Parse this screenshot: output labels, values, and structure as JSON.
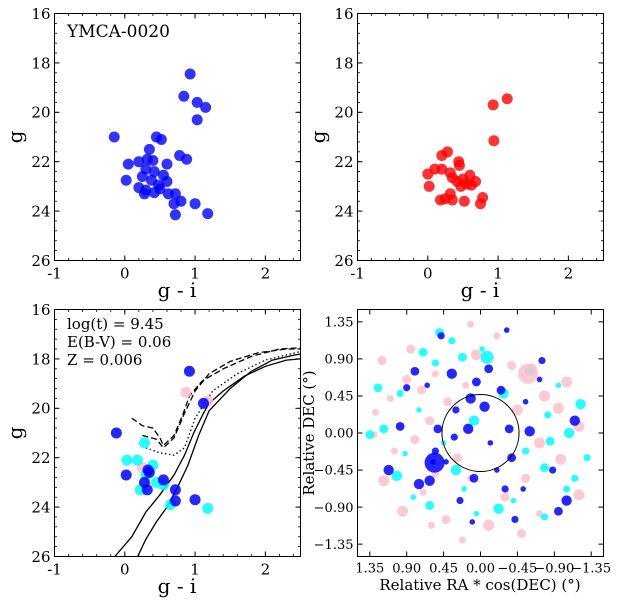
{
  "chart_data": [
    {
      "type": "scatter",
      "panel": "top-left",
      "title": "YMCA-0020",
      "xlabel": "g - i",
      "ylabel": "g",
      "xlim": [
        -1,
        2.5
      ],
      "ylim": [
        26,
        16
      ],
      "xticks": [
        -1,
        0,
        1,
        2
      ],
      "yticks": [
        16,
        18,
        20,
        22,
        24,
        26
      ],
      "color": "#0000ff",
      "points": [
        [
          0.93,
          18.45
        ],
        [
          0.84,
          19.35
        ],
        [
          1.03,
          19.6
        ],
        [
          1.15,
          19.8
        ],
        [
          1.03,
          20.3
        ],
        [
          -0.15,
          21.0
        ],
        [
          0.45,
          21.0
        ],
        [
          0.52,
          21.1
        ],
        [
          0.78,
          21.75
        ],
        [
          0.88,
          21.9
        ],
        [
          0.35,
          21.5
        ],
        [
          0.32,
          21.9
        ],
        [
          0.05,
          22.1
        ],
        [
          0.2,
          22.0
        ],
        [
          0.4,
          21.95
        ],
        [
          0.6,
          22.1
        ],
        [
          0.3,
          22.3
        ],
        [
          0.42,
          22.4
        ],
        [
          0.55,
          22.55
        ],
        [
          0.25,
          22.6
        ],
        [
          0.02,
          22.75
        ],
        [
          0.38,
          22.75
        ],
        [
          0.6,
          22.8
        ],
        [
          0.48,
          22.95
        ],
        [
          0.2,
          23.05
        ],
        [
          0.3,
          23.15
        ],
        [
          0.5,
          23.1
        ],
        [
          0.62,
          23.3
        ],
        [
          0.72,
          23.3
        ],
        [
          0.28,
          23.3
        ],
        [
          0.42,
          23.25
        ],
        [
          0.8,
          23.6
        ],
        [
          0.7,
          23.7
        ],
        [
          1.0,
          23.7
        ],
        [
          0.72,
          24.15
        ],
        [
          1.18,
          24.1
        ]
      ]
    },
    {
      "type": "scatter",
      "panel": "top-right",
      "xlabel": "g - i",
      "ylabel": "g",
      "xlim": [
        -1,
        2.5
      ],
      "ylim": [
        26,
        16
      ],
      "xticks": [
        -1,
        0,
        1,
        2
      ],
      "yticks": [
        16,
        18,
        20,
        22,
        24,
        26
      ],
      "color": "#ff0000",
      "points": [
        [
          1.13,
          19.45
        ],
        [
          0.93,
          19.7
        ],
        [
          0.94,
          21.15
        ],
        [
          0.28,
          21.6
        ],
        [
          0.2,
          21.75
        ],
        [
          0.44,
          22.0
        ],
        [
          0.45,
          22.15
        ],
        [
          0.1,
          22.3
        ],
        [
          0.2,
          22.3
        ],
        [
          0.32,
          22.45
        ],
        [
          0.0,
          22.5
        ],
        [
          0.6,
          22.55
        ],
        [
          0.35,
          22.65
        ],
        [
          0.5,
          22.7
        ],
        [
          0.42,
          22.8
        ],
        [
          0.68,
          22.8
        ],
        [
          0.55,
          22.9
        ],
        [
          0.62,
          22.95
        ],
        [
          0.47,
          23.0
        ],
        [
          0.02,
          23.0
        ],
        [
          0.32,
          23.3
        ],
        [
          0.25,
          23.5
        ],
        [
          0.78,
          23.45
        ],
        [
          0.18,
          23.55
        ],
        [
          0.35,
          23.55
        ],
        [
          0.52,
          23.6
        ],
        [
          0.75,
          23.7
        ]
      ]
    },
    {
      "type": "scatter",
      "panel": "bottom-left",
      "xlabel": "g - i",
      "ylabel": "g",
      "xlim": [
        -1,
        2.5
      ],
      "ylim": [
        26,
        16
      ],
      "xticks": [
        -1,
        0,
        1,
        2
      ],
      "yticks": [
        16,
        18,
        20,
        22,
        24,
        26
      ],
      "annotations": [
        "log(t) = 9.45",
        "E(B-V) = 0.06",
        "Z = 0.006"
      ],
      "series": [
        {
          "name": "pink",
          "color": "#ffc0cb",
          "points": [
            [
              0.87,
              19.35
            ],
            [
              1.18,
              19.7
            ],
            [
              0.25,
              22.4
            ]
          ]
        },
        {
          "name": "cyan",
          "color": "#00ffff",
          "points": [
            [
              0.03,
              22.1
            ],
            [
              0.18,
              22.1
            ],
            [
              0.28,
              21.4
            ],
            [
              0.3,
              22.7
            ],
            [
              0.45,
              23.0
            ],
            [
              0.22,
              23.3
            ],
            [
              0.55,
              23.1
            ],
            [
              1.18,
              24.05
            ],
            [
              0.4,
              22.3
            ],
            [
              0.65,
              23.9
            ]
          ]
        },
        {
          "name": "blue",
          "color": "#0000ff",
          "points": [
            [
              -0.12,
              21.0
            ],
            [
              0.92,
              18.5
            ],
            [
              1.12,
              19.8
            ],
            [
              0.02,
              22.7
            ],
            [
              0.33,
              22.5
            ],
            [
              0.35,
              22.6
            ],
            [
              0.55,
              22.9
            ],
            [
              0.72,
              23.3
            ],
            [
              0.32,
              23.3
            ],
            [
              0.72,
              23.75
            ],
            [
              0.28,
              23.0
            ],
            [
              1.0,
              23.7
            ]
          ]
        }
      ],
      "isochrones": [
        {
          "style": "solid",
          "x": [
            -0.2,
            0.1,
            0.3,
            0.5,
            0.7,
            0.85,
            0.98,
            1.12,
            1.2,
            1.4,
            1.7,
            2.0,
            2.3,
            2.5
          ],
          "y": [
            26.2,
            25.2,
            24.2,
            23.5,
            22.7,
            21.9,
            21.0,
            20.2,
            19.8,
            19.3,
            18.7,
            18.3,
            18.05,
            18.0
          ]
        },
        {
          "style": "solid",
          "x": [
            0.15,
            0.3,
            0.45,
            0.6,
            0.75,
            0.9,
            1.05,
            1.2,
            1.5,
            1.8,
            2.1,
            2.4,
            2.5
          ],
          "y": [
            26.2,
            25.3,
            24.6,
            24.0,
            23.2,
            22.3,
            21.1,
            20.1,
            19.2,
            18.5,
            18.05,
            17.85,
            17.8
          ]
        },
        {
          "style": "dashed",
          "x": [
            0.1,
            0.25,
            0.4,
            0.5,
            0.55,
            0.7,
            0.82,
            0.92,
            1.1,
            1.4,
            1.8,
            2.2,
            2.5
          ],
          "y": [
            20.4,
            20.7,
            20.8,
            21.2,
            21.5,
            21.1,
            20.3,
            19.5,
            18.9,
            18.4,
            17.9,
            17.6,
            17.55
          ]
        },
        {
          "style": "dashed",
          "x": [
            0.25,
            0.45,
            0.55,
            0.7,
            0.85,
            1.0,
            1.2,
            1.5,
            1.9,
            2.3,
            2.5
          ],
          "y": [
            21.1,
            21.25,
            21.6,
            21.2,
            20.2,
            19.3,
            18.6,
            18.1,
            17.75,
            17.6,
            17.6
          ]
        },
        {
          "style": "dotted",
          "x": [
            0.3,
            0.5,
            0.7,
            0.85,
            1.0,
            1.25,
            1.6,
            2.0,
            2.5
          ],
          "y": [
            21.6,
            21.8,
            21.9,
            21.6,
            20.4,
            19.3,
            18.6,
            18.05,
            17.7
          ]
        }
      ]
    },
    {
      "type": "scatter",
      "panel": "bottom-right",
      "xlabel": "Relative RA * cos(DEC) (°)",
      "ylabel": "Relative DEC (°)",
      "xlim": [
        1.5,
        -1.5
      ],
      "ylim": [
        -1.5,
        1.5
      ],
      "xticks": [
        1.35,
        0.9,
        0.45,
        0.0,
        -0.45,
        -0.9,
        -1.35
      ],
      "xticklabels": [
        "1.35",
        "0.90",
        "0.45",
        "0.00",
        "−0.45",
        "−0.90",
        "−1.35"
      ],
      "yticks": [
        -1.35,
        -0.9,
        -0.45,
        0.0,
        0.45,
        0.9,
        1.35
      ],
      "yticklabels": [
        "−1.35",
        "−0.90",
        "−0.45",
        "0.00",
        "0.45",
        "0.90",
        "1.35"
      ],
      "circle": {
        "center": [
          0.0,
          0.0
        ],
        "radius": 0.47
      },
      "series": [
        {
          "name": "pink",
          "color": "#ffc0cb",
          "points": [
            [
              0.12,
              1.32
            ],
            [
              -0.38,
              0.82
            ],
            [
              -0.62,
              0.78
            ],
            [
              0.55,
              0.72
            ],
            [
              0.9,
              0.65
            ],
            [
              -1.05,
              0.62
            ],
            [
              0.18,
              0.58
            ],
            [
              0.72,
              0.52
            ],
            [
              -0.78,
              0.45
            ],
            [
              1.1,
              0.42
            ],
            [
              0.4,
              0.38
            ],
            [
              -0.95,
              0.3
            ],
            [
              1.28,
              0.25
            ],
            [
              0.62,
              0.15
            ],
            [
              -1.2,
              0.08
            ],
            [
              1.3,
              -0.02
            ],
            [
              0.8,
              -0.08
            ],
            [
              -0.72,
              -0.12
            ],
            [
              1.05,
              -0.22
            ],
            [
              0.28,
              -0.3
            ],
            [
              -0.98,
              -0.32
            ],
            [
              0.55,
              -0.5
            ],
            [
              -0.55,
              -0.55
            ],
            [
              1.18,
              -0.58
            ],
            [
              0.7,
              -0.72
            ],
            [
              -0.3,
              -0.78
            ],
            [
              0.95,
              -0.95
            ],
            [
              -0.72,
              -0.98
            ],
            [
              0.42,
              -1.05
            ],
            [
              -0.1,
              -1.12
            ],
            [
              0.22,
              -1.3
            ],
            [
              -0.5,
              -1.22
            ],
            [
              0.05,
              0.95
            ],
            [
              -0.2,
              1.18
            ],
            [
              0.85,
              1.02
            ],
            [
              -0.45,
              0.28
            ],
            [
              0.12,
              -0.55
            ],
            [
              1.2,
              0.88
            ],
            [
              -1.2,
              -0.75
            ],
            [
              0.6,
              -1.12
            ]
          ]
        },
        {
          "name": "cyan",
          "color": "#00ffff",
          "points": [
            [
              -0.02,
              1.02
            ],
            [
              0.35,
              1.12
            ],
            [
              0.22,
              0.92
            ],
            [
              -0.6,
              0.75
            ],
            [
              -0.95,
              0.58
            ],
            [
              0.98,
              0.48
            ],
            [
              1.25,
              0.55
            ],
            [
              -1.22,
              0.35
            ],
            [
              0.75,
              0.28
            ],
            [
              -0.82,
              0.22
            ],
            [
              1.35,
              -0.02
            ],
            [
              -1.08,
              0.0
            ],
            [
              0.45,
              -0.12
            ],
            [
              -0.55,
              -0.22
            ],
            [
              -0.78,
              -0.42
            ],
            [
              1.02,
              -0.52
            ],
            [
              0.2,
              -0.68
            ],
            [
              -1.15,
              -0.55
            ],
            [
              0.62,
              -0.88
            ],
            [
              -0.22,
              -0.92
            ],
            [
              0.05,
              -0.98
            ],
            [
              -0.78,
              -1.02
            ],
            [
              0.5,
              1.22
            ],
            [
              -0.28,
              0.48
            ],
            [
              0.92,
              -0.25
            ],
            [
              -1.05,
              -0.68
            ],
            [
              1.18,
              0.05
            ],
            [
              0.3,
              -0.45
            ],
            [
              -0.4,
              -0.82
            ],
            [
              0.55,
              0.85
            ],
            [
              -0.85,
              -0.1
            ],
            [
              0.08,
              0.15
            ],
            [
              0.82,
              -0.78
            ],
            [
              -1.3,
              -0.3
            ],
            [
              0.7,
              0.98
            ]
          ]
        },
        {
          "name": "blue",
          "color": "#0000ff",
          "points": [
            [
              -0.32,
              1.25
            ],
            [
              0.48,
              1.18
            ],
            [
              -0.1,
              0.78
            ],
            [
              0.35,
              0.72
            ],
            [
              -0.72,
              0.65
            ],
            [
              0.9,
              0.55
            ],
            [
              -0.25,
              0.52
            ],
            [
              0.12,
              0.42
            ],
            [
              -0.55,
              0.38
            ],
            [
              0.3,
              0.28
            ],
            [
              -0.35,
              0.05
            ],
            [
              0.15,
              0.05
            ],
            [
              -0.12,
              -0.12
            ],
            [
              0.55,
              -0.22
            ],
            [
              -0.38,
              -0.3
            ],
            [
              1.12,
              -0.45
            ],
            [
              0.42,
              -0.35
            ],
            [
              -0.88,
              -0.45
            ],
            [
              0.08,
              -0.55
            ],
            [
              0.75,
              -0.62
            ],
            [
              -0.52,
              -0.68
            ],
            [
              0.25,
              -0.82
            ],
            [
              -0.95,
              -0.95
            ],
            [
              0.62,
              -0.58
            ],
            [
              0.1,
              -1.08
            ],
            [
              -0.42,
              -1.05
            ],
            [
              0.52,
              0.05
            ],
            [
              -0.6,
              0.02
            ],
            [
              0.58,
              -0.35
            ],
            [
              -0.75,
              0.88
            ],
            [
              0.8,
              0.75
            ],
            [
              -1.15,
              0.15
            ],
            [
              -0.2,
              -0.45
            ],
            [
              0.32,
              -0.05
            ],
            [
              0.98,
              0.08
            ],
            [
              -0.05,
              0.32
            ],
            [
              0.65,
              0.58
            ],
            [
              -0.3,
              -0.68
            ],
            [
              0.05,
              0.62
            ],
            [
              -1.05,
              -0.82
            ]
          ]
        }
      ],
      "highlight_points": [
        {
          "color": "#0000ff",
          "x": 0.56,
          "y": -0.36,
          "size": "large"
        },
        {
          "color": "#ffc0cb",
          "x": -0.58,
          "y": 0.72,
          "size": "large"
        },
        {
          "color": "#00ffff",
          "x": -0.08,
          "y": 0.92,
          "size": "medium"
        }
      ]
    }
  ]
}
